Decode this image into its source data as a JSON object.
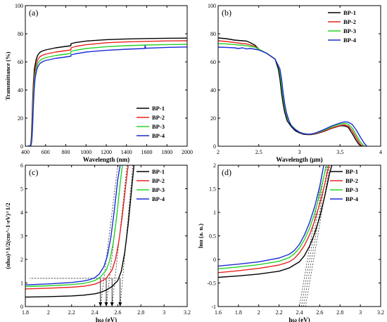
{
  "chart_data": [
    {
      "type": "line",
      "panel_label": "(a)",
      "xlabel": "Wavelength (nm)",
      "ylabel": "Transmittance (%)",
      "xlim": [
        400,
        2000
      ],
      "ylim": [
        0,
        100
      ],
      "x_ticks": [
        400,
        600,
        800,
        1000,
        1200,
        1400,
        1600,
        1800,
        2000
      ],
      "y_ticks": [
        0,
        20,
        40,
        60,
        80,
        100
      ],
      "legend_position": "bottom-right",
      "series": [
        {
          "name": "BP-1",
          "color": "#000000",
          "x": [
            420,
            440,
            452,
            458,
            465,
            472,
            480,
            490,
            505,
            520,
            540,
            560,
            600,
            700,
            800,
            850,
            852,
            900,
            1000,
            1200,
            1400,
            1600,
            1800,
            2000
          ],
          "y": [
            0,
            0,
            1,
            4,
            15,
            32,
            45,
            55,
            61,
            64.5,
            66.5,
            67.5,
            68.5,
            70,
            71,
            71.5,
            73,
            73.8,
            74.8,
            75.8,
            76.3,
            76.6,
            76.8,
            76.9
          ]
        },
        {
          "name": "BP-2",
          "color": "#e8231f",
          "x": [
            420,
            440,
            454,
            460,
            467,
            474,
            482,
            492,
            507,
            522,
            542,
            562,
            600,
            700,
            800,
            850,
            852,
            900,
            1000,
            1200,
            1400,
            1600,
            1800,
            2000
          ],
          "y": [
            0,
            0,
            1,
            4,
            14,
            30,
            43,
            52,
            58,
            61.5,
            63.5,
            64.5,
            65.5,
            67,
            68,
            68.5,
            70,
            71,
            72.2,
            73.6,
            74.2,
            74.6,
            74.9,
            75
          ]
        },
        {
          "name": "BP-3",
          "color": "#27d327",
          "x": [
            420,
            442,
            456,
            462,
            469,
            476,
            484,
            494,
            509,
            524,
            544,
            564,
            600,
            700,
            800,
            850,
            852,
            900,
            1000,
            1200,
            1400,
            1600,
            1800,
            2000
          ],
          "y": [
            0,
            0,
            1,
            4,
            13,
            28,
            41,
            50,
            56,
            59,
            61,
            62,
            63,
            64.5,
            65.5,
            66,
            67.5,
            68.3,
            69.5,
            70.8,
            71.5,
            72,
            72.3,
            72.5
          ]
        },
        {
          "name": "BP-4",
          "color": "#1b2bd6",
          "x": [
            420,
            444,
            458,
            464,
            471,
            478,
            486,
            496,
            511,
            526,
            546,
            566,
            600,
            700,
            800,
            850,
            852,
            900,
            1000,
            1200,
            1400,
            1580,
            1585,
            1590,
            1600,
            1800,
            2000
          ],
          "y": [
            0,
            0,
            1,
            4,
            12,
            26,
            39,
            48,
            54,
            57,
            59,
            60,
            61,
            62.5,
            63.5,
            64,
            65,
            65.8,
            67,
            68.2,
            69,
            69.5,
            71.5,
            69.6,
            69.7,
            70.3,
            70.6
          ]
        }
      ]
    },
    {
      "type": "line",
      "panel_label": "(b)",
      "xlabel": "Wavelength (μm)",
      "ylabel": "",
      "xlim": [
        2,
        4
      ],
      "ylim": [
        0,
        100
      ],
      "x_ticks": [
        2,
        2.5,
        3,
        3.5,
        4
      ],
      "y_ticks": [
        0,
        20,
        40,
        60,
        80,
        100
      ],
      "legend_position": "top-right",
      "series": [
        {
          "name": "BP-1",
          "color": "#000000",
          "x": [
            2,
            2.1,
            2.2,
            2.3,
            2.35,
            2.4,
            2.45,
            2.5,
            2.6,
            2.7,
            2.74,
            2.76,
            2.78,
            2.8,
            2.82,
            2.85,
            2.9,
            2.95,
            3.0,
            3.05,
            3.1,
            3.15,
            3.2,
            3.3,
            3.4,
            3.5,
            3.55,
            3.6,
            3.65,
            3.7,
            3.73,
            3.76
          ],
          "y": [
            77,
            76.5,
            75.5,
            75,
            74.8,
            73.5,
            72,
            69,
            66,
            62,
            55,
            48,
            38,
            30,
            24,
            18,
            14,
            11,
            9.5,
            8.5,
            8.2,
            8.3,
            8.8,
            10.5,
            12.8,
            14.5,
            14.6,
            13.5,
            9,
            4,
            1.5,
            0
          ]
        },
        {
          "name": "BP-2",
          "color": "#e8231f",
          "x": [
            2,
            2.1,
            2.2,
            2.3,
            2.35,
            2.4,
            2.45,
            2.5,
            2.6,
            2.7,
            2.75,
            2.77,
            2.79,
            2.81,
            2.83,
            2.86,
            2.9,
            2.95,
            3.0,
            3.05,
            3.1,
            3.15,
            3.2,
            3.3,
            3.4,
            3.5,
            3.55,
            3.6,
            3.65,
            3.7,
            3.74,
            3.78
          ],
          "y": [
            75,
            74.5,
            73.8,
            73,
            72.8,
            72,
            71,
            69,
            66,
            62,
            56,
            49,
            39,
            31,
            25,
            19,
            15,
            12,
            10,
            8.8,
            8.4,
            8.5,
            9,
            10.8,
            13,
            14.8,
            15.2,
            14.5,
            11,
            6,
            2,
            0
          ]
        },
        {
          "name": "BP-3",
          "color": "#27d327",
          "x": [
            2,
            2.1,
            2.2,
            2.3,
            2.35,
            2.4,
            2.45,
            2.5,
            2.6,
            2.7,
            2.75,
            2.77,
            2.79,
            2.81,
            2.83,
            2.86,
            2.9,
            2.95,
            3.0,
            3.05,
            3.1,
            3.15,
            3.2,
            3.3,
            3.4,
            3.5,
            3.55,
            3.6,
            3.65,
            3.7,
            3.75,
            3.8
          ],
          "y": [
            73,
            72.8,
            72.3,
            71.8,
            71.5,
            71,
            70.5,
            69,
            66,
            62,
            56,
            49,
            39,
            31,
            25,
            19,
            15,
            12,
            10,
            9,
            8.5,
            8.7,
            9.3,
            11.3,
            13.8,
            15.8,
            16.2,
            15.8,
            13,
            8,
            3,
            0
          ]
        },
        {
          "name": "BP-4",
          "color": "#1b2bd6",
          "x": [
            2,
            2.1,
            2.2,
            2.25,
            2.3,
            2.35,
            2.4,
            2.45,
            2.5,
            2.6,
            2.7,
            2.76,
            2.78,
            2.8,
            2.82,
            2.84,
            2.87,
            2.9,
            2.95,
            3.0,
            3.05,
            3.1,
            3.15,
            3.2,
            3.3,
            3.4,
            3.5,
            3.55,
            3.6,
            3.65,
            3.7,
            3.75,
            3.8,
            3.83
          ],
          "y": [
            70.5,
            70.3,
            70,
            69.5,
            70,
            69.2,
            69.5,
            69,
            68.5,
            66,
            62,
            55,
            48,
            38,
            30,
            24,
            18.5,
            14.5,
            11.8,
            10,
            9,
            8.6,
            8.8,
            9.5,
            11.8,
            14.5,
            16.5,
            17.3,
            17.2,
            15.5,
            11.5,
            6.5,
            2,
            0
          ]
        }
      ]
    },
    {
      "type": "line",
      "panel_label": "(c)",
      "xlabel": "hω (eV)",
      "ylabel": "(αhω)^1/2(cm^-1·eV)^1/2",
      "xlim": [
        1.8,
        3.2
      ],
      "ylim": [
        0,
        6
      ],
      "x_ticks": [
        1.8,
        2.0,
        2.2,
        2.4,
        2.6,
        2.8,
        3.0,
        3.2
      ],
      "y_ticks": [
        0,
        1,
        2,
        3,
        4,
        5,
        6
      ],
      "legend_position": "top-right",
      "series": [
        {
          "name": "BP-1",
          "color": "#000000",
          "x": [
            1.8,
            2.0,
            2.2,
            2.3,
            2.4,
            2.45,
            2.5,
            2.55,
            2.6,
            2.63,
            2.66,
            2.69,
            2.72,
            2.74
          ],
          "y": [
            0.4,
            0.42,
            0.45,
            0.48,
            0.54,
            0.6,
            0.7,
            0.85,
            1.1,
            1.5,
            2.3,
            3.5,
            5.0,
            6.0
          ]
        },
        {
          "name": "BP-2",
          "color": "#e8231f",
          "x": [
            1.8,
            2.0,
            2.2,
            2.3,
            2.35,
            2.4,
            2.45,
            2.5,
            2.55,
            2.58,
            2.61,
            2.64,
            2.67,
            2.69
          ],
          "y": [
            0.75,
            0.78,
            0.82,
            0.86,
            0.9,
            0.95,
            1.05,
            1.2,
            1.55,
            2.0,
            2.8,
            3.9,
            5.2,
            6.0
          ]
        },
        {
          "name": "BP-3",
          "color": "#27d327",
          "x": [
            1.8,
            2.0,
            2.2,
            2.3,
            2.35,
            2.4,
            2.45,
            2.5,
            2.53,
            2.56,
            2.59,
            2.62,
            2.64
          ],
          "y": [
            0.85,
            0.88,
            0.93,
            0.98,
            1.03,
            1.1,
            1.25,
            1.55,
            1.95,
            2.7,
            3.8,
            5.2,
            6.0
          ]
        },
        {
          "name": "BP-4",
          "color": "#1b2bd6",
          "x": [
            1.8,
            2.0,
            2.2,
            2.3,
            2.35,
            2.4,
            2.44,
            2.48,
            2.51,
            2.54,
            2.57,
            2.6,
            2.62
          ],
          "y": [
            0.92,
            0.96,
            1.02,
            1.08,
            1.13,
            1.22,
            1.38,
            1.7,
            2.15,
            2.95,
            4.1,
            5.4,
            6.0
          ]
        }
      ],
      "guides": [
        {
          "x0": 2.45,
          "y0": 0,
          "x1": 2.6,
          "y1": 6.0
        },
        {
          "x0": 2.5,
          "y0": 0,
          "x1": 2.64,
          "y1": 6.0
        },
        {
          "x0": 2.55,
          "y0": 0,
          "x1": 2.68,
          "y1": 6.0
        },
        {
          "x0": 2.62,
          "y0": 0,
          "x1": 2.73,
          "y1": 6.0
        }
      ]
    },
    {
      "type": "line",
      "panel_label": "(d)",
      "xlabel": "hω (eV)",
      "ylabel": "lnα (a. u.)",
      "xlim": [
        1.6,
        3.2
      ],
      "ylim": [
        -1,
        2
      ],
      "x_ticks": [
        1.6,
        1.8,
        2.0,
        2.2,
        2.4,
        2.6,
        2.8,
        3.0,
        3.2
      ],
      "y_ticks": [
        -1,
        -0.5,
        0,
        0.5,
        1,
        1.5,
        2
      ],
      "legend_position": "top-right",
      "series": [
        {
          "name": "BP-1",
          "color": "#000000",
          "x": [
            1.6,
            1.8,
            2.0,
            2.2,
            2.3,
            2.4,
            2.45,
            2.5,
            2.55,
            2.6,
            2.65,
            2.7,
            2.72
          ],
          "y": [
            -0.38,
            -0.35,
            -0.31,
            -0.25,
            -0.18,
            -0.05,
            0.08,
            0.28,
            0.55,
            0.9,
            1.35,
            1.85,
            2.0
          ]
        },
        {
          "name": "BP-2",
          "color": "#e8231f",
          "x": [
            1.6,
            1.8,
            2.0,
            2.2,
            2.3,
            2.35,
            2.4,
            2.45,
            2.5,
            2.55,
            2.6,
            2.65,
            2.69
          ],
          "y": [
            -0.28,
            -0.24,
            -0.19,
            -0.12,
            -0.05,
            0.02,
            0.14,
            0.3,
            0.52,
            0.82,
            1.18,
            1.6,
            2.0
          ]
        },
        {
          "name": "BP-3",
          "color": "#27d327",
          "x": [
            1.6,
            1.8,
            2.0,
            2.2,
            2.3,
            2.35,
            2.4,
            2.45,
            2.5,
            2.55,
            2.6,
            2.65,
            2.67
          ],
          "y": [
            -0.2,
            -0.16,
            -0.11,
            -0.04,
            0.04,
            0.12,
            0.24,
            0.42,
            0.66,
            0.98,
            1.38,
            1.85,
            2.0
          ]
        },
        {
          "name": "BP-4",
          "color": "#1b2bd6",
          "x": [
            1.6,
            1.8,
            2.0,
            2.2,
            2.3,
            2.35,
            2.4,
            2.45,
            2.5,
            2.55,
            2.6,
            2.64
          ],
          "y": [
            -0.14,
            -0.1,
            -0.05,
            0.03,
            0.11,
            0.19,
            0.32,
            0.52,
            0.78,
            1.12,
            1.55,
            2.0
          ]
        }
      ],
      "guides": [
        {
          "x0": 2.4,
          "y0": -1,
          "x1": 2.64,
          "y1": 2.0
        },
        {
          "x0": 2.42,
          "y0": -1,
          "x1": 2.66,
          "y1": 2.0
        },
        {
          "x0": 2.44,
          "y0": -1,
          "x1": 2.68,
          "y1": 2.0
        },
        {
          "x0": 2.46,
          "y0": -1,
          "x1": 2.7,
          "y1": 2.0
        }
      ]
    }
  ]
}
